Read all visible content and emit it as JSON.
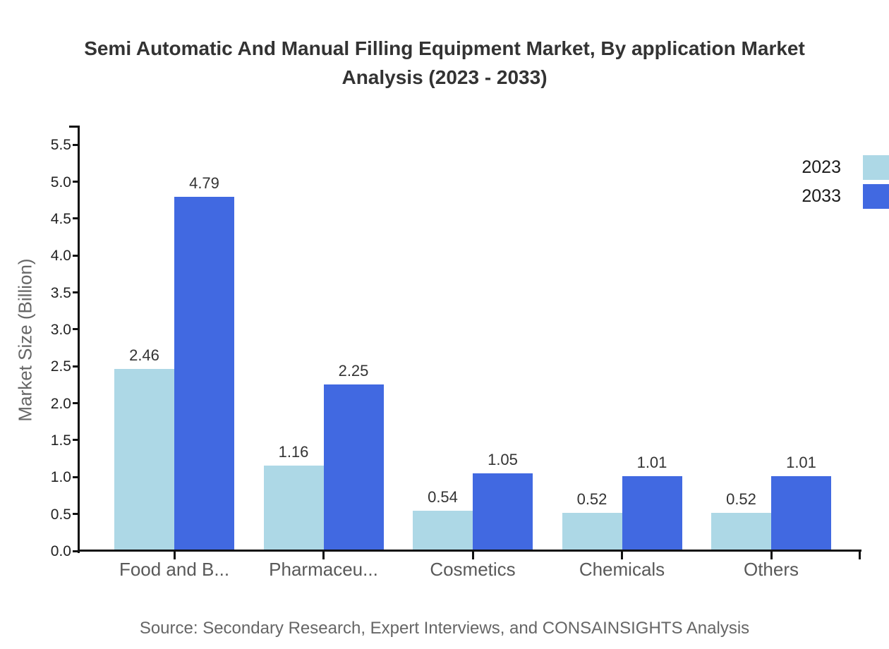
{
  "title": "Semi Automatic And Manual Filling Equipment Market, By application Market Analysis (2023 - 2033)",
  "source_note": "Source: Secondary Research, Expert Interviews, and CONSAINSIGHTS Analysis",
  "chart_data": {
    "type": "bar",
    "title": "Semi Automatic And Manual Filling Equipment Market, By application Market Analysis (2023 - 2033)",
    "categories": [
      "Food and B...",
      "Pharmaceu...",
      "Cosmetics",
      "Chemicals",
      "Others"
    ],
    "series": [
      {
        "name": "2023",
        "color": "#ADD8E6",
        "values": [
          2.46,
          1.16,
          0.54,
          0.52,
          0.52
        ]
      },
      {
        "name": "2033",
        "color": "#4169E1",
        "values": [
          4.79,
          2.25,
          1.05,
          1.01,
          1.01
        ]
      }
    ],
    "xlabel": "",
    "ylabel": "Market Size (Billion)",
    "ylim": [
      0,
      5.5
    ],
    "ytick_step": 0.5,
    "value_label_decimals": 2,
    "grid": false,
    "legend_position": "top-right",
    "bar_label_format": "above-bar"
  }
}
